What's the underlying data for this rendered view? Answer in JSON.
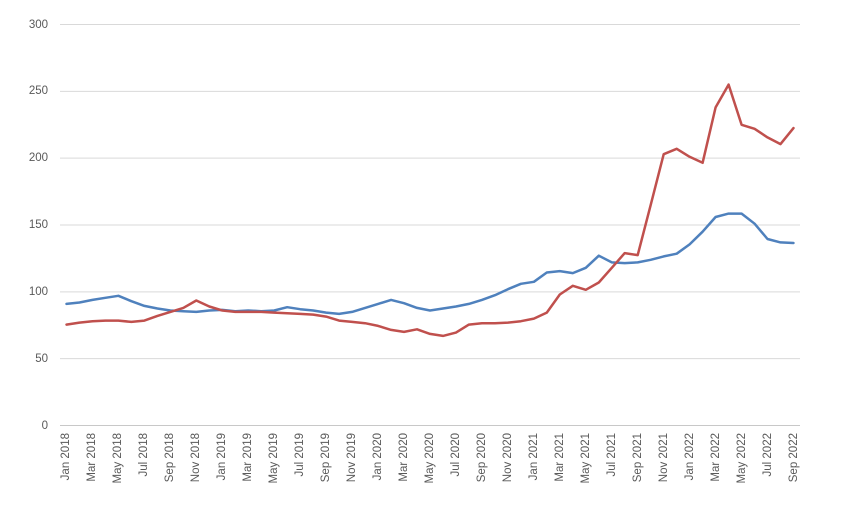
{
  "chart_data": {
    "type": "line",
    "title": "",
    "legend": "none",
    "grid": "horizontal",
    "xlabel": "",
    "ylabel": "",
    "ylim": [
      0,
      300
    ],
    "y_ticks": [
      0,
      50,
      100,
      150,
      200,
      250,
      300
    ],
    "x": [
      "Jan 2018",
      "Feb 2018",
      "Mar 2018",
      "Apr 2018",
      "May 2018",
      "Jun 2018",
      "Jul 2018",
      "Aug 2018",
      "Sep 2018",
      "Oct 2018",
      "Nov 2018",
      "Dec 2018",
      "Jan 2019",
      "Feb 2019",
      "Mar 2019",
      "Apr 2019",
      "May 2019",
      "Jun 2019",
      "Jul 2019",
      "Aug 2019",
      "Sep 2019",
      "Oct 2019",
      "Nov 2019",
      "Dec 2019",
      "Jan 2020",
      "Feb 2020",
      "Mar 2020",
      "Apr 2020",
      "May 2020",
      "Jun 2020",
      "Jul 2020",
      "Aug 2020",
      "Sep 2020",
      "Oct 2020",
      "Nov 2020",
      "Dec 2020",
      "Jan 2021",
      "Feb 2021",
      "Mar 2021",
      "Apr 2021",
      "May 2021",
      "Jun 2021",
      "Jul 2021",
      "Aug 2021",
      "Sep 2021",
      "Oct 2021",
      "Nov 2021",
      "Dec 2021",
      "Jan 2022",
      "Feb 2022",
      "Mar 2022",
      "Apr 2022",
      "May 2022",
      "Jun 2022",
      "Jul 2022",
      "Aug 2022",
      "Sep 2022"
    ],
    "x_tick_labels": [
      "Jan 2018",
      "Mar 2018",
      "May 2018",
      "Jul 2018",
      "Sep 2018",
      "Nov 2018",
      "Jan 2019",
      "Mar 2019",
      "May 2019",
      "Jul 2019",
      "Sep 2019",
      "Nov 2019",
      "Jan 2020",
      "Mar 2020",
      "May 2020",
      "Jul 2020",
      "Sep 2020",
      "Nov 2020",
      "Jan 2021",
      "Mar 2021",
      "May 2021",
      "Jul 2021",
      "Sep 2021",
      "Nov 2021",
      "Jan 2022",
      "Mar 2022",
      "May 2022",
      "Jul 2022",
      "Sep 2022"
    ],
    "series": [
      {
        "name": "series-1-blue",
        "color": "#4F81BD",
        "values": [
          91,
          92,
          94,
          95.5,
          97,
          93,
          89.5,
          87.5,
          86,
          85.5,
          85,
          86,
          86.5,
          85.5,
          86,
          85.5,
          86,
          88.5,
          87,
          86,
          84.5,
          83.5,
          85,
          88,
          91,
          94,
          91.5,
          88,
          86,
          87.5,
          89,
          91,
          94,
          97.5,
          102,
          106,
          107.5,
          114.5,
          115.5,
          114,
          118,
          127,
          122,
          121.5,
          122,
          124,
          126.5,
          128.5,
          135.5,
          145,
          156,
          158.5,
          158.5,
          151,
          139.5,
          137,
          136.5
        ]
      },
      {
        "name": "series-2-red",
        "color": "#C0504D",
        "values": [
          75.5,
          77,
          78,
          78.5,
          78.5,
          77.5,
          78.5,
          82,
          85,
          88,
          93.5,
          89,
          86,
          85,
          85,
          85,
          84.5,
          84,
          83.5,
          83,
          81.5,
          78.5,
          77.5,
          76.5,
          74.5,
          71.5,
          70,
          72,
          68.5,
          67,
          69.5,
          75.5,
          76.5,
          76.5,
          77,
          78,
          80,
          84.5,
          98,
          104.5,
          101.5,
          107,
          118,
          129,
          127.5,
          165,
          203,
          207,
          201,
          196.5,
          238,
          255,
          225,
          222,
          215.5,
          210.5,
          222.5
        ]
      }
    ],
    "colors": {
      "background": "#FFFFFF",
      "gridline": "#D9D9D9",
      "axis_line": "#C8C8C8",
      "axis_label": "#595959"
    }
  }
}
